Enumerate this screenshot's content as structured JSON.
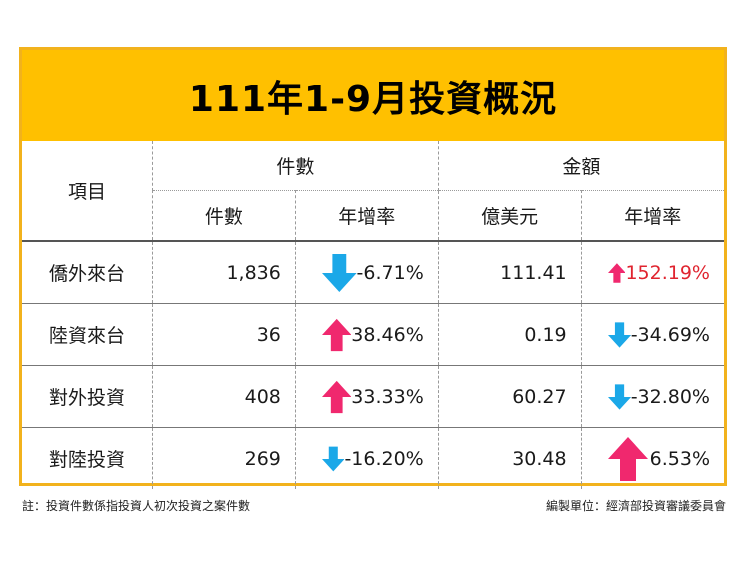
{
  "title": "111年1-9月投資概況",
  "headers": {
    "item": "項目",
    "count_group": "件數",
    "amount_group": "金額",
    "count": "件數",
    "count_growth": "年增率",
    "amount": "億美元",
    "amount_growth": "年增率"
  },
  "rows": [
    {
      "item": "僑外來台",
      "count": "1,836",
      "count_growth": "-6.71%",
      "count_dir": "down",
      "amount": "111.41",
      "amount_growth": "152.19%",
      "amount_dir": "up"
    },
    {
      "item": "陸資來台",
      "count": "36",
      "count_growth": "38.46%",
      "count_dir": "up",
      "amount": "0.19",
      "amount_growth": "-34.69%",
      "amount_dir": "down"
    },
    {
      "item": "對外投資",
      "count": "408",
      "count_growth": "33.33%",
      "count_dir": "up",
      "amount": "60.27",
      "amount_growth": "-32.80%",
      "amount_dir": "down"
    },
    {
      "item": "對陸投資",
      "count": "269",
      "count_growth": "-16.20%",
      "count_dir": "down",
      "amount": "30.48",
      "amount_growth": "6.53%",
      "amount_dir": "up"
    }
  ],
  "footnote": "註：投資件數係指投資人初次投資之案件數",
  "compiled_by": "編製單位：經濟部投資審議委員會",
  "colors": {
    "title_bg": "#ffc000",
    "border": "#f2b21c",
    "up_arrow": "#f0286e",
    "down_arrow": "#1ba8e8",
    "highlight_text": "#e0242f"
  }
}
